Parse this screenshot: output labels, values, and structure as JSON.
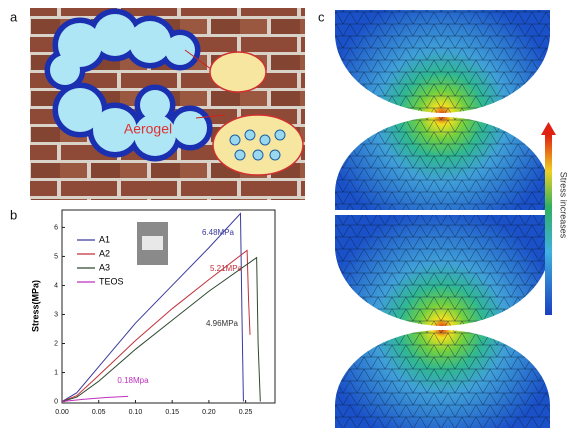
{
  "panels": {
    "a": {
      "label": "a",
      "text": "Aerogel"
    },
    "c": {
      "label": "c",
      "colorbar_label": "Stress increases"
    }
  },
  "chart_data": {
    "type": "line",
    "label": "b",
    "ylabel": "Stress(MPa)",
    "xlim": [
      0,
      0.29
    ],
    "ylim": [
      -0.05,
      6.6
    ],
    "xticks": [
      {
        "value": 0,
        "label": "0.00"
      },
      {
        "value": 0.05,
        "label": "0.05"
      },
      {
        "value": 0.1,
        "label": "0.10"
      },
      {
        "value": 0.15,
        "label": "0.15"
      },
      {
        "value": 0.2,
        "label": "0.20"
      },
      {
        "value": 0.25,
        "label": "0.25"
      }
    ],
    "yticks": [
      0,
      1,
      2,
      3,
      4,
      5,
      6
    ],
    "series": [
      {
        "name": "A1",
        "color": "#3a3a9c",
        "x": [
          0,
          0.02,
          0.05,
          0.1,
          0.15,
          0.2,
          0.243,
          0.245,
          0.247
        ],
        "values": [
          0,
          0.3,
          1.2,
          2.7,
          4.0,
          5.3,
          6.48,
          3,
          0
        ]
      },
      {
        "name": "A2",
        "color": "#c0303a",
        "x": [
          0,
          0.02,
          0.05,
          0.1,
          0.15,
          0.2,
          0.252,
          0.254,
          0.256
        ],
        "values": [
          0,
          0.2,
          0.9,
          2.1,
          3.2,
          4.2,
          5.21,
          3.5,
          2.3
        ]
      },
      {
        "name": "A3",
        "color": "#2f4a30",
        "x": [
          0,
          0.02,
          0.05,
          0.1,
          0.15,
          0.2,
          0.265,
          0.267,
          0.27
        ],
        "values": [
          0,
          0.15,
          0.7,
          1.8,
          2.8,
          3.8,
          4.96,
          2,
          0
        ]
      },
      {
        "name": "TEOS",
        "color": "#c030c0",
        "x": [
          0,
          0.03,
          0.06,
          0.09
        ],
        "values": [
          0,
          0.08,
          0.14,
          0.18
        ]
      }
    ],
    "annotations": [
      "6.48MPa",
      "5.21MPa",
      "4.96MPa",
      "0.18Mpa"
    ]
  }
}
